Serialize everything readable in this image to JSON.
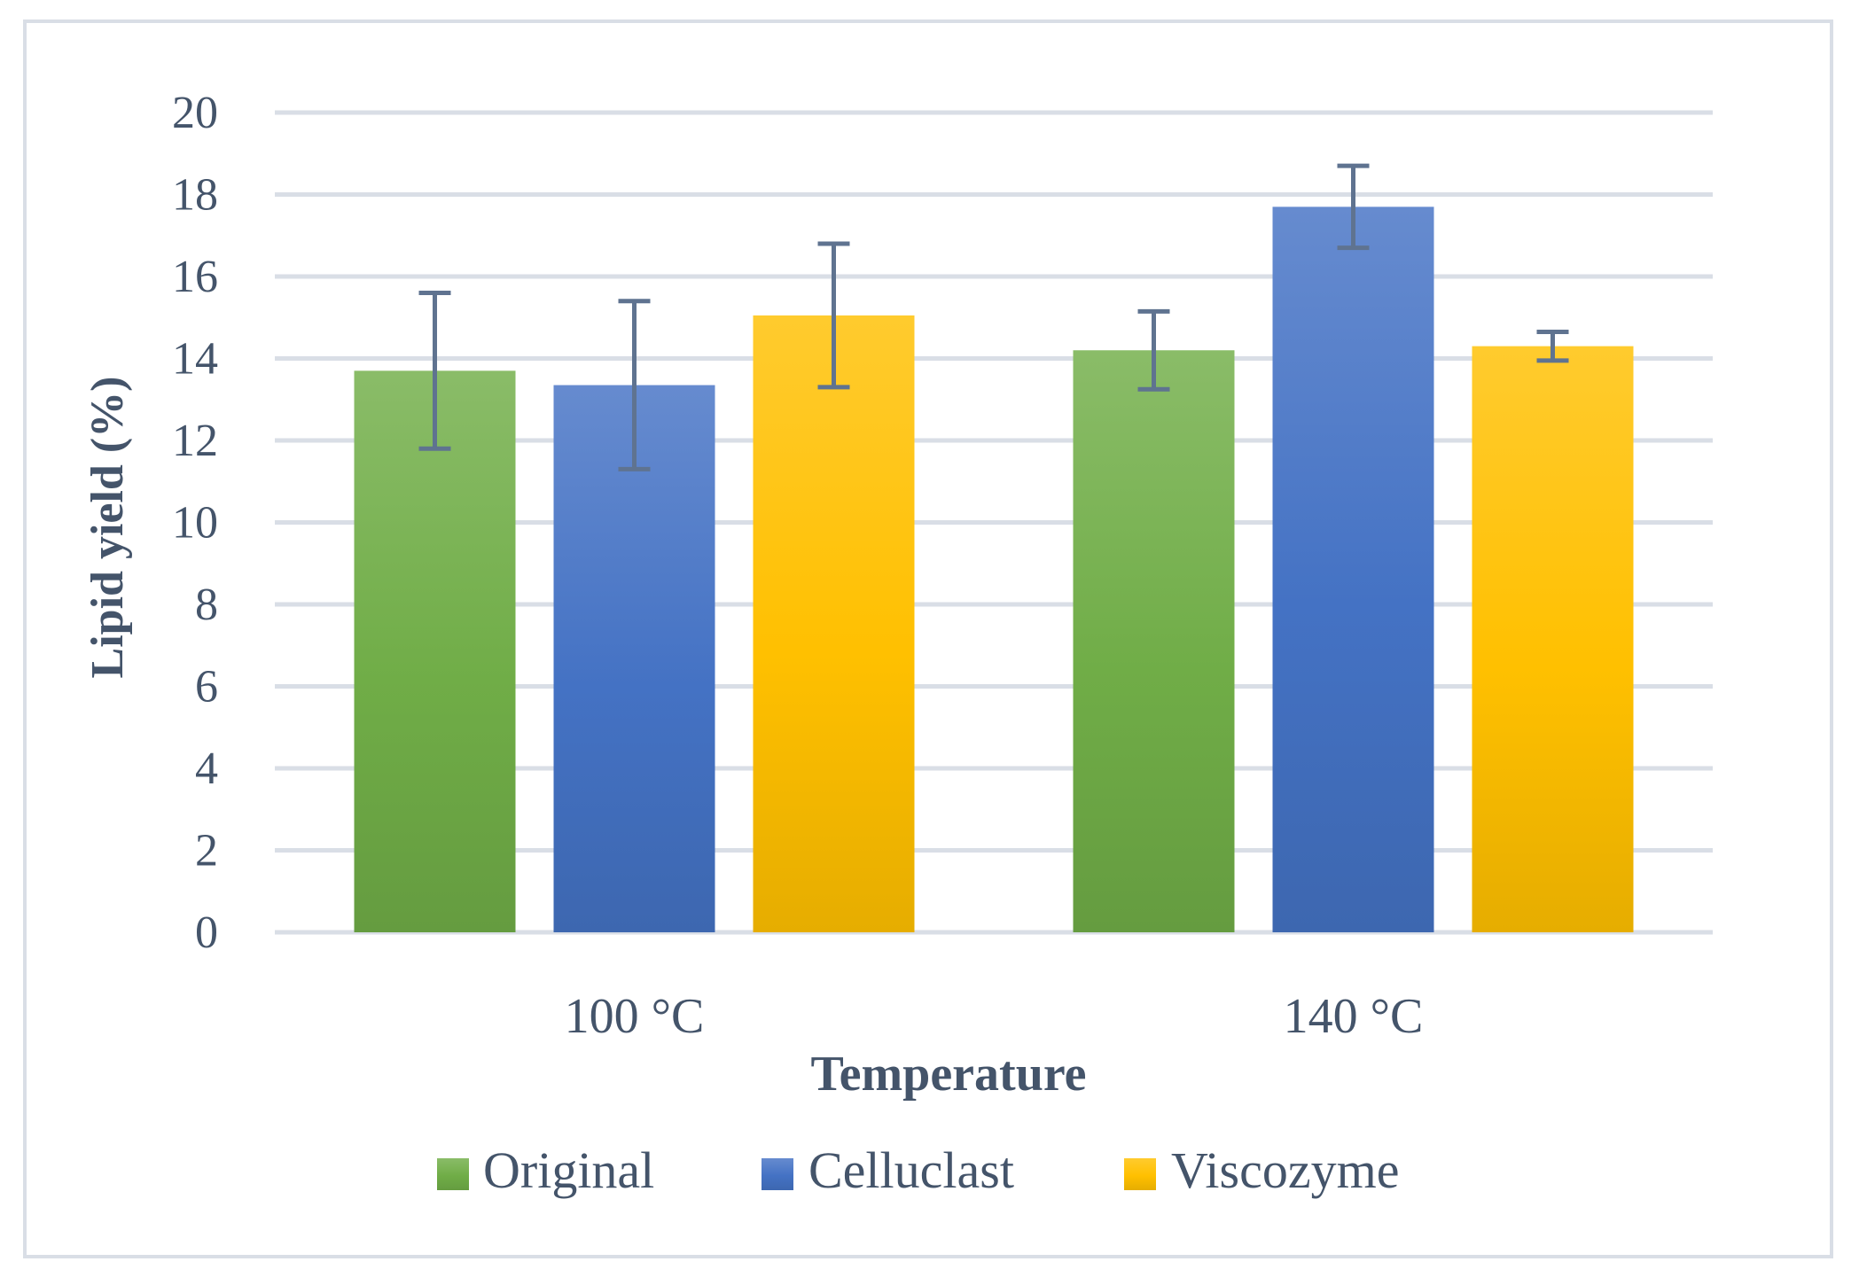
{
  "chart_data": {
    "type": "bar",
    "title": "",
    "xlabel": "Temperature",
    "ylabel": "Lipid yield (%)",
    "categories": [
      "100 °C",
      "140 °C"
    ],
    "ylim": [
      0,
      20
    ],
    "yticks": [
      "0",
      "2",
      "4",
      "6",
      "8",
      "10",
      "12",
      "14",
      "16",
      "18",
      "20"
    ],
    "grid": true,
    "legend_position": "bottom",
    "series": [
      {
        "name": "Original",
        "color": "#70ad47",
        "values": [
          13.7,
          14.2
        ],
        "errors": [
          1.9,
          0.95
        ]
      },
      {
        "name": "Celluclast",
        "color": "#4472c4",
        "values": [
          13.35,
          17.7
        ],
        "errors": [
          2.05,
          1.0
        ]
      },
      {
        "name": "Viscozyme",
        "color": "#ffc000",
        "values": [
          15.05,
          14.3
        ],
        "errors": [
          1.75,
          0.35
        ]
      }
    ]
  }
}
